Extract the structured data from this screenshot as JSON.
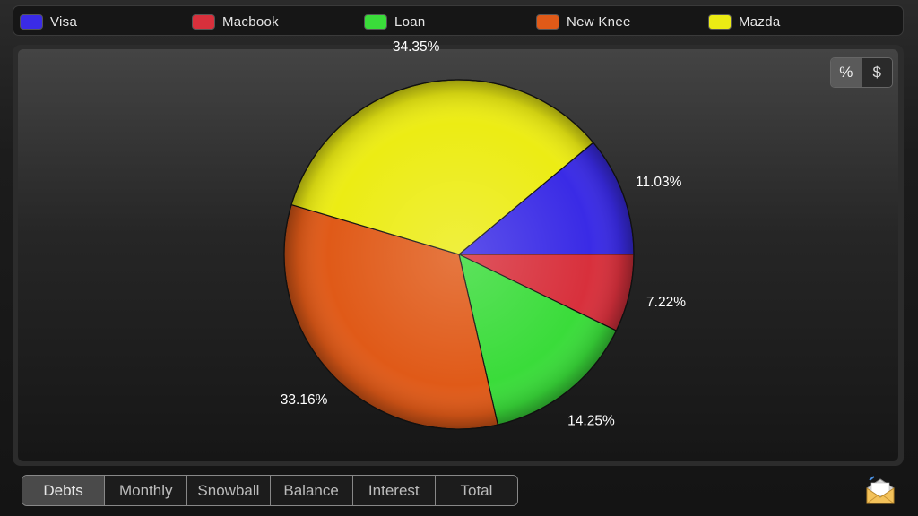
{
  "legend": [
    {
      "label": "Visa",
      "color": "#3a2be6"
    },
    {
      "label": "Macbook",
      "color": "#d8303c"
    },
    {
      "label": "Loan",
      "color": "#3adc3a"
    },
    {
      "label": "New Knee",
      "color": "#e05a18"
    },
    {
      "label": "Mazda",
      "color": "#ecec14"
    }
  ],
  "toggle": {
    "percent_label": "%",
    "dollar_label": "$",
    "active": "percent"
  },
  "chart_data": {
    "type": "pie",
    "slices": [
      {
        "name": "Visa",
        "value": 11.03,
        "label": "11.03%",
        "color": "#3a2be6"
      },
      {
        "name": "Macbook",
        "value": 7.22,
        "label": "7.22%",
        "color": "#d8303c"
      },
      {
        "name": "Loan",
        "value": 14.25,
        "label": "14.25%",
        "color": "#3adc3a"
      },
      {
        "name": "New Knee",
        "value": 33.16,
        "label": "33.16%",
        "color": "#e05a18"
      },
      {
        "name": "Mazda",
        "value": 34.35,
        "label": "34.35%",
        "color": "#ecec14"
      }
    ],
    "legend_placement": "top"
  },
  "tabs": [
    {
      "label": "Debts",
      "active": true
    },
    {
      "label": "Monthly",
      "active": false
    },
    {
      "label": "Snowball",
      "active": false
    },
    {
      "label": "Balance",
      "active": false
    },
    {
      "label": "Interest",
      "active": false
    },
    {
      "label": "Total",
      "active": false
    }
  ],
  "share_icon": "mail-envelope-icon"
}
